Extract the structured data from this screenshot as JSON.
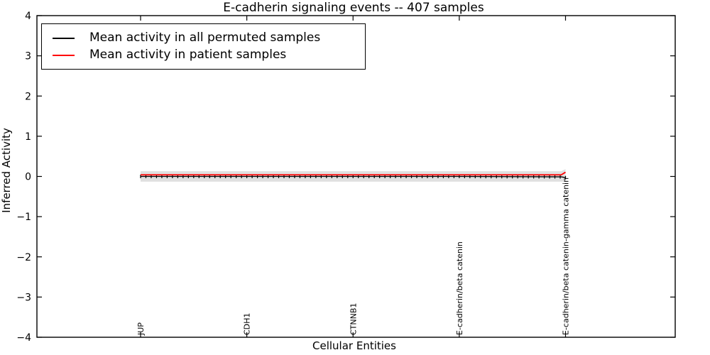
{
  "chart_data": {
    "type": "line",
    "title": "E-cadherin signaling events -- 407 samples",
    "xlabel": "Cellular Entities",
    "ylabel": "Inferred Activity",
    "ylim": [
      -4,
      4
    ],
    "ytick_values": [
      4,
      3,
      2,
      1,
      0,
      -1,
      -2,
      -3,
      -4
    ],
    "ytick_labels": [
      "4",
      "3",
      "2",
      "1",
      "0",
      "−1",
      "−2",
      "−3",
      "−4"
    ],
    "categories": [
      "JUP",
      "CDH1",
      "CTNNB1",
      "E-cadherin/beta catenin",
      "E-cadherin/beta catenin-gamma catenin"
    ],
    "n_points": 81,
    "control_fractions": [
      0,
      0.25,
      0.5,
      0.75,
      0.99,
      1.0
    ],
    "series": [
      {
        "name": "Mean activity in all permuted samples",
        "color": "#000000",
        "marker": "|",
        "values": [
          0.0,
          0.0,
          0.0,
          0.0,
          -0.01,
          -0.03
        ]
      },
      {
        "name": "Mean activity in patient samples",
        "color": "#ff0000",
        "marker": null,
        "values": [
          0.04,
          0.04,
          0.04,
          0.04,
          0.04,
          0.105
        ]
      }
    ],
    "band": {
      "color": "#e0e0e0",
      "upper": [
        0.13,
        0.13,
        0.13,
        0.13,
        0.13,
        0.18
      ],
      "lower": [
        -0.13,
        -0.13,
        -0.13,
        -0.13,
        -0.13,
        -0.13
      ]
    },
    "legend_position": "upper left",
    "grid": false,
    "axis_color": "#000000",
    "background": "#ffffff"
  }
}
